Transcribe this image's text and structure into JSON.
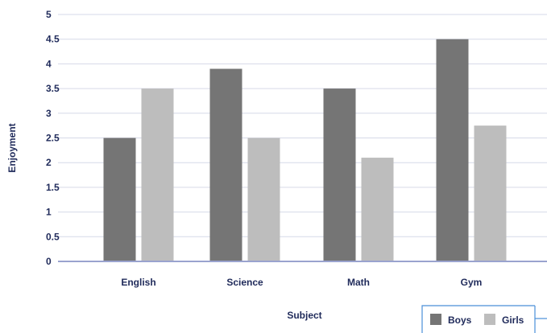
{
  "chart_data": {
    "type": "bar",
    "categories": [
      "English",
      "Science",
      "Math",
      "Gym"
    ],
    "series": [
      {
        "name": "Boys",
        "values": [
          2.5,
          3.9,
          3.5,
          4.5
        ],
        "color": "#757575"
      },
      {
        "name": "Girls",
        "values": [
          3.5,
          2.5,
          2.1,
          2.75
        ],
        "color": "#bdbdbd"
      }
    ],
    "xlabel": "Subject",
    "ylabel": "Enjoyment",
    "ylim": [
      0,
      5
    ],
    "yticks": [
      "0",
      "0.5",
      "1",
      "1.5",
      "2",
      "2.5",
      "3",
      "3.5",
      "4",
      "4.5",
      "5"
    ],
    "grid": true,
    "legend_position": "bottom-right",
    "colors": {
      "grid": "#d6d9e8",
      "axis": "#9aa3cf",
      "text": "#1f2a5a",
      "legend_border": "#4a8fd8"
    }
  }
}
